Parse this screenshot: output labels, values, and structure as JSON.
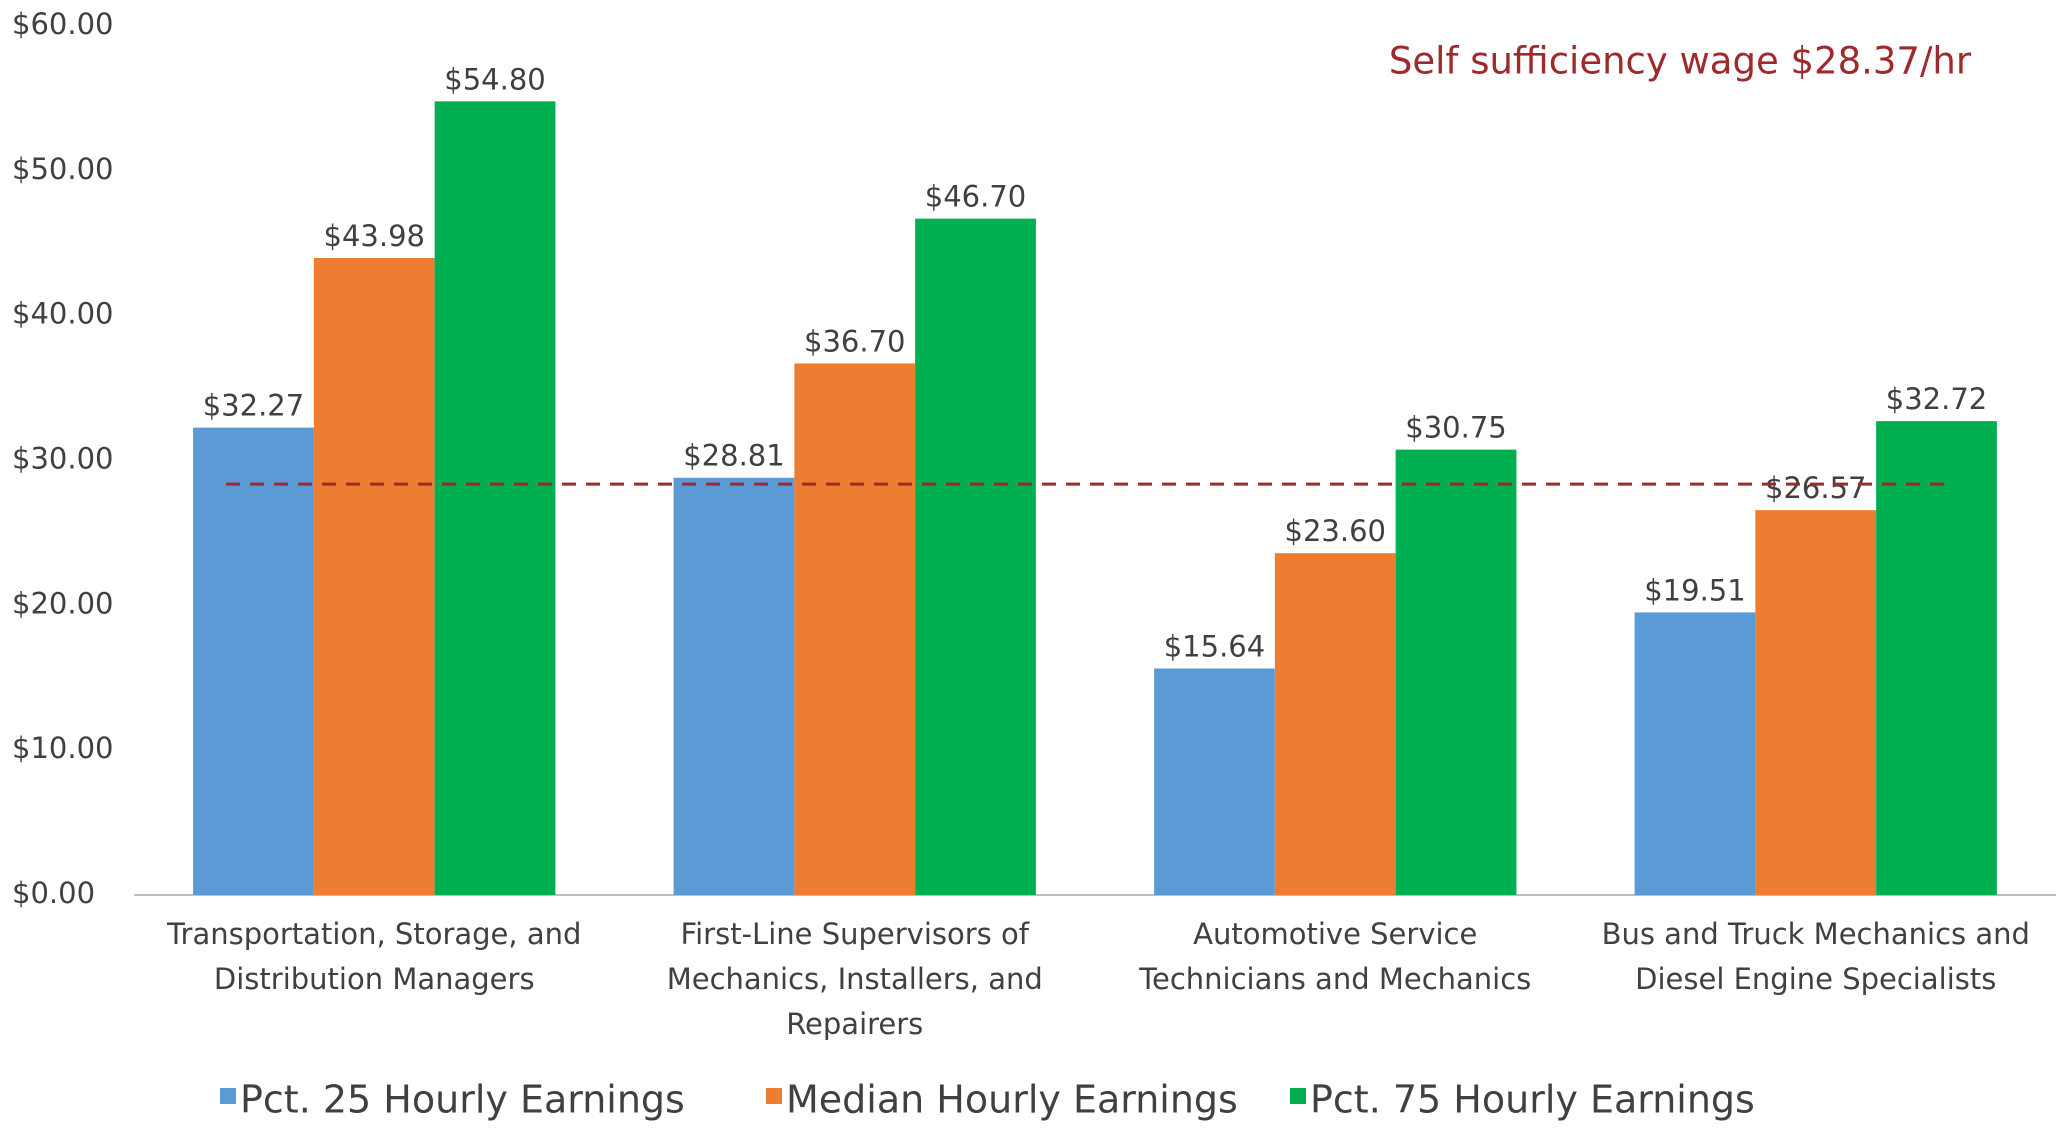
{
  "chart_data": {
    "type": "bar",
    "categories": [
      "Transportation, Storage, and\nDistribution Managers",
      "First-Line Supervisors of\nMechanics, Installers, and\nRepairers",
      "Automotive Service\nTechnicians and Mechanics",
      "Bus and Truck Mechanics and\nDiesel Engine Specialists"
    ],
    "series": [
      {
        "name": "Pct. 25 Hourly Earnings",
        "color": "#5b9bd5",
        "values": [
          32.27,
          28.81,
          15.64,
          19.51
        ],
        "value_labels": [
          "$32.27",
          "$28.81",
          "$15.64",
          "$19.51"
        ]
      },
      {
        "name": "Median Hourly Earnings",
        "color": "#ed7d31",
        "values": [
          43.98,
          36.7,
          23.6,
          26.57
        ],
        "value_labels": [
          "$43.98",
          "$36.70",
          "$23.60",
          "$26.57"
        ]
      },
      {
        "name": "Pct. 75 Hourly Earnings",
        "color": "#00b050",
        "values": [
          54.8,
          46.7,
          30.75,
          32.72
        ],
        "value_labels": [
          "$54.80",
          "$46.70",
          "$30.75",
          "$32.72"
        ]
      }
    ],
    "ylim": [
      0,
      60
    ],
    "yticks": [
      {
        "value": 0,
        "label": "$0.00"
      },
      {
        "value": 10,
        "label": "$10.00"
      },
      {
        "value": 20,
        "label": "$20.00"
      },
      {
        "value": 30,
        "label": "$30.00"
      },
      {
        "value": 40,
        "label": "$40.00"
      },
      {
        "value": 50,
        "label": "$50.00"
      },
      {
        "value": 60,
        "label": "$60.00"
      }
    ],
    "reference_line": {
      "value": 28.37,
      "label": "Self sufficiency wage $28.37/hr",
      "color": "#9e2a2b"
    },
    "legend": "bottom",
    "grid": false
  }
}
